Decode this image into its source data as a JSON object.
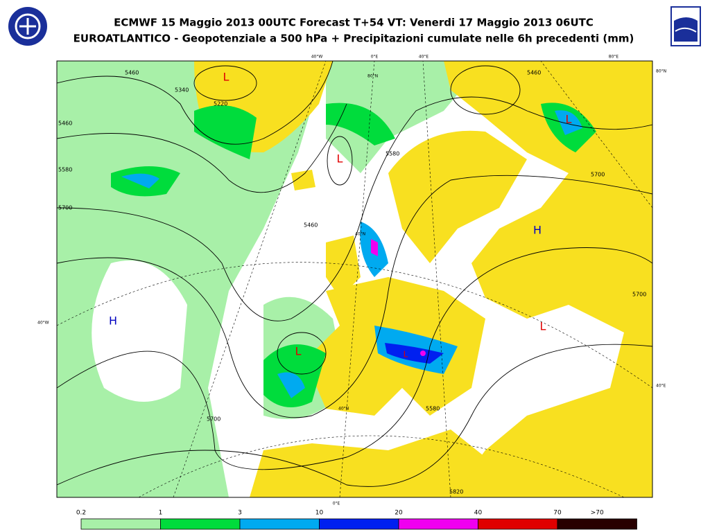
{
  "header": {
    "title": "ECMWF 15 Maggio 2013 00UTC Forecast T+54 VT: Venerdi 17 Maggio 2013 06UTC",
    "subtitle": "EUROATLANTICO - Geopotenziale a 500 hPa + Precipitazioni cumulate nelle 6h precedenti (mm)"
  },
  "map": {
    "pressure_centers": [
      "L",
      "L",
      "L",
      "H",
      "H",
      "L",
      "L",
      "L"
    ],
    "contour_labels": [
      "5460",
      "5340",
      "5220",
      "5460",
      "5580",
      "5700",
      "5460",
      "5580",
      "5460",
      "5700",
      "5700",
      "5580",
      "5700",
      "5820"
    ],
    "graticule_labels": [
      "40°W",
      "0°E",
      "40°E",
      "80°E",
      "80°N",
      "40°W",
      "40°E",
      "0°E",
      "80°N",
      "40°N",
      "40°N"
    ]
  },
  "legend": {
    "labels": [
      "0.2",
      "1",
      "3",
      "10",
      "20",
      "40",
      "70",
      ">70"
    ],
    "colors": [
      "#a8f0a8",
      "#00dc3c",
      "#00aaf0",
      "#0020f0",
      "#f000f0",
      "#e00000",
      "#280000"
    ]
  }
}
